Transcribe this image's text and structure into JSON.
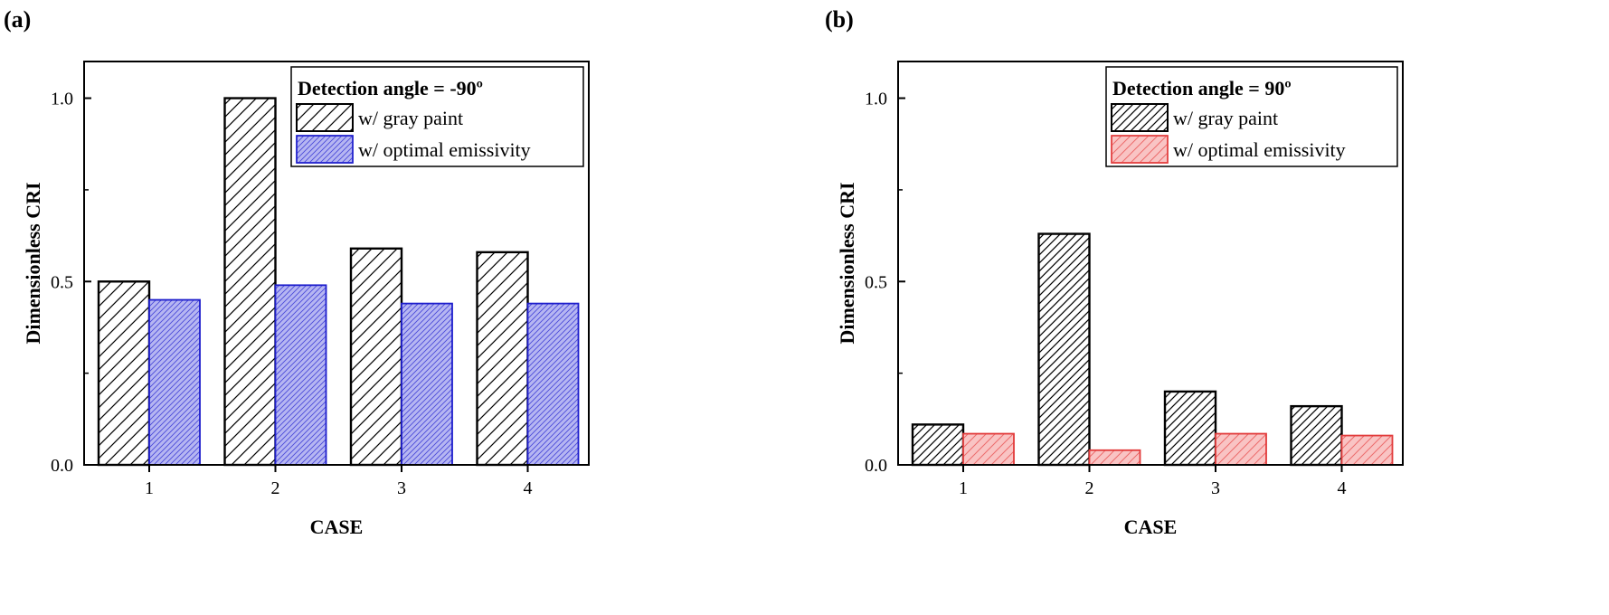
{
  "chart_data": [
    {
      "panel_label": "(a)",
      "type": "bar",
      "categories": [
        "1",
        "2",
        "3",
        "4"
      ],
      "xlabel": "CASE",
      "ylabel": "Dimensionless CRI",
      "ylim": [
        0,
        1.1
      ],
      "yticks": [
        "0.0",
        "0.5",
        "1.0"
      ],
      "legend_title": "Detection angle = -90º",
      "series": [
        {
          "name": "w/ gray paint",
          "values": [
            0.5,
            1.0,
            0.59,
            0.58
          ],
          "fill": "#ffffff",
          "edge": "#000000",
          "hatch": "#000000"
        },
        {
          "name": "w/ optimal emissivity",
          "values": [
            0.45,
            0.49,
            0.44,
            0.44
          ],
          "fill": "#b6b6f2",
          "edge": "#1d1dcc",
          "hatch": "#4a4ad8"
        }
      ]
    },
    {
      "panel_label": "(b)",
      "type": "bar",
      "categories": [
        "1",
        "2",
        "3",
        "4"
      ],
      "xlabel": "CASE",
      "ylabel": "Dimensionless CRI",
      "ylim": [
        0,
        1.1
      ],
      "yticks": [
        "0.0",
        "0.5",
        "1.0"
      ],
      "legend_title": "Detection angle = 90º",
      "series": [
        {
          "name": "w/ gray paint",
          "values": [
            0.11,
            0.63,
            0.2,
            0.16
          ],
          "fill": "#ffffff",
          "edge": "#000000",
          "hatch": "#000000"
        },
        {
          "name": "w/ optimal emissivity",
          "values": [
            0.085,
            0.04,
            0.085,
            0.08
          ],
          "fill": "#f9c4c4",
          "edge": "#e23b3b",
          "hatch": "#ec6b6b"
        }
      ]
    }
  ]
}
